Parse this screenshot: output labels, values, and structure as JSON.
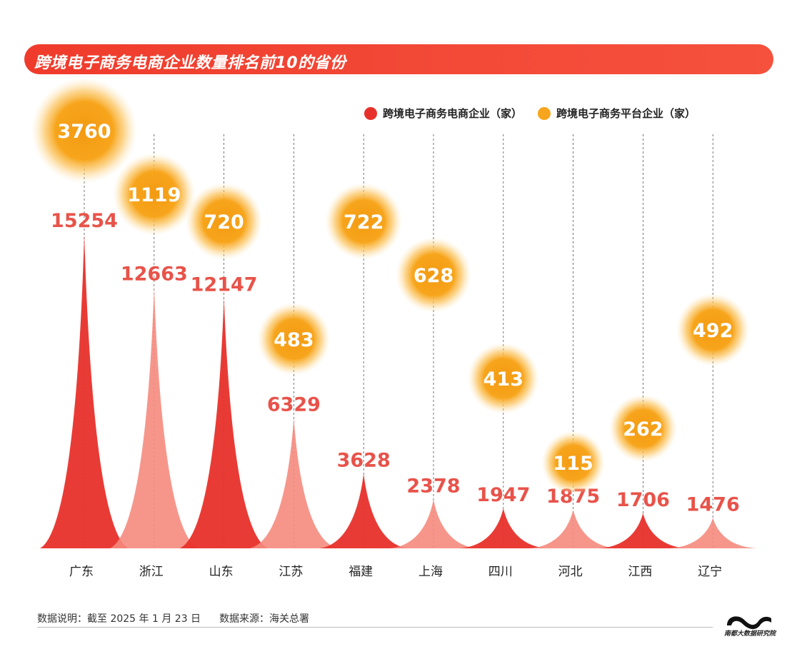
{
  "title": "跨境电子商务电商企业数量排名前10的省份",
  "legend": {
    "series1": "跨境电子商务电商企业（家）",
    "series2": "跨境电子商务平台企业（家）"
  },
  "colors": {
    "title_bg": "#ef3b2c",
    "series1_dark": "#e8302a",
    "series1_light": "#f58b7e",
    "series1_label": "#e8534a",
    "series2": "#f7a51c",
    "series2_core": "#f39a12"
  },
  "chart_data": {
    "type": "area",
    "title": "跨境电子商务电商企业数量排名前10的省份",
    "categories": [
      "广东",
      "浙江",
      "山东",
      "江苏",
      "福建",
      "上海",
      "四川",
      "河北",
      "江西",
      "辽宁"
    ],
    "series": [
      {
        "name": "跨境电子商务电商企业（家）",
        "values": [
          15254,
          12663,
          12147,
          6329,
          3628,
          2378,
          1947,
          1875,
          1706,
          1476
        ]
      },
      {
        "name": "跨境电子商务平台企业（家）",
        "values": [
          3760,
          1119,
          720,
          483,
          722,
          628,
          413,
          115,
          262,
          492
        ]
      }
    ],
    "xlabel": "",
    "ylabel": "",
    "ylim": [
      0,
      15254
    ]
  },
  "footer": {
    "note": "数据说明：截至 2025 年 1 月 23 日",
    "source": "数据来源：海关总署",
    "logo_text": "南都大数据研究院"
  }
}
